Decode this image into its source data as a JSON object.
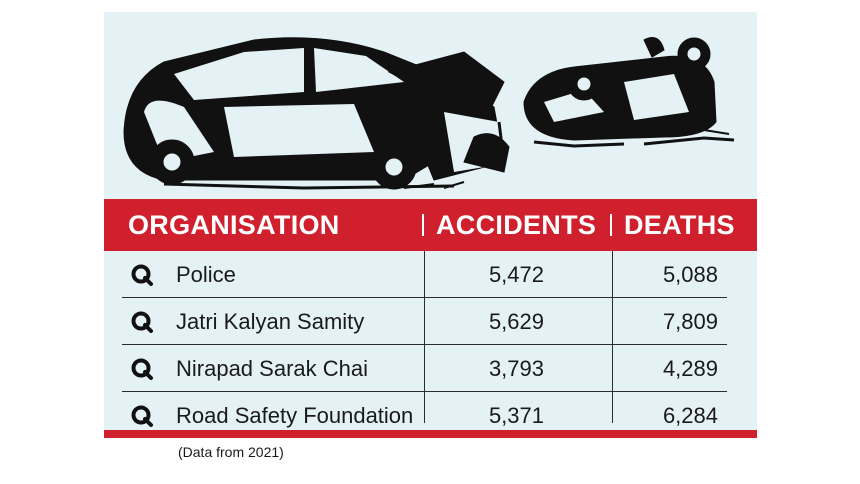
{
  "chart_data": {
    "type": "table",
    "columns": [
      "ORGANISATION",
      "ACCIDENTS",
      "DEATHS"
    ],
    "rows": [
      {
        "organisation": "Police",
        "accidents": "5,472",
        "deaths": "5,088"
      },
      {
        "organisation": "Jatri Kalyan Samity",
        "accidents": "5,629",
        "deaths": "7,809"
      },
      {
        "organisation": "Nirapad Sarak Chai",
        "accidents": "3,793",
        "deaths": "4,289"
      },
      {
        "organisation": "Road Safety Foundation",
        "accidents": "5,371",
        "deaths": "6,284"
      }
    ],
    "note": "(Data from 2021)"
  },
  "colors": {
    "header": "#d0202e",
    "panel": "#e4f2f6",
    "ink": "#111111"
  },
  "icons": {
    "row_bullet": "magnifier-icon",
    "illustration": "crashed-cars-illustration"
  }
}
